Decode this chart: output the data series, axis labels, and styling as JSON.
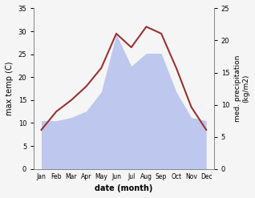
{
  "months": [
    "Jan",
    "Feb",
    "Mar",
    "Apr",
    "May",
    "Jun",
    "Jul",
    "Aug",
    "Sep",
    "Oct",
    "Nov",
    "Dec"
  ],
  "month_x": [
    0,
    1,
    2,
    3,
    4,
    5,
    6,
    7,
    8,
    9,
    10,
    11
  ],
  "temperature": [
    8.5,
    12.5,
    15.0,
    18.0,
    22.0,
    29.5,
    26.5,
    31.0,
    29.5,
    22.0,
    13.5,
    8.5
  ],
  "precipitation": [
    7.5,
    7.5,
    8.0,
    9.0,
    12.0,
    21.0,
    16.0,
    18.0,
    18.0,
    12.0,
    8.0,
    7.5
  ],
  "temp_color": "#993333",
  "precip_color": "#b8c4ef",
  "title": "",
  "xlabel": "date (month)",
  "ylabel_left": "max temp (C)",
  "ylabel_right": "med. precipitation\n(kg/m2)",
  "ylim_left": [
    0,
    35
  ],
  "ylim_right": [
    0,
    25
  ],
  "yticks_left": [
    0,
    5,
    10,
    15,
    20,
    25,
    30,
    35
  ],
  "yticks_right": [
    0,
    5,
    10,
    15,
    20,
    25
  ],
  "bg_color": "#f5f5f5",
  "linewidth": 1.5
}
